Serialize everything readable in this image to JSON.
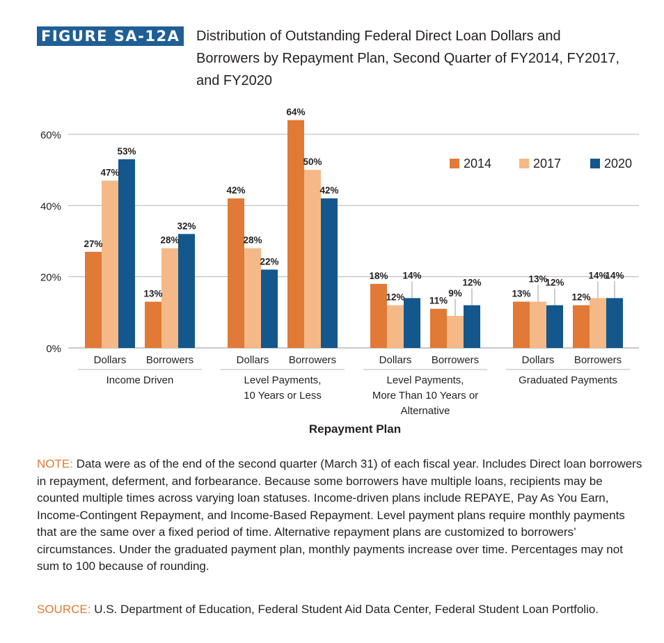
{
  "figure": {
    "label": "FIGURE SA-12A",
    "title": "Distribution of Outstanding Federal Direct Loan Dollars and Borrowers by Repayment Plan, Second Quarter of FY2014, FY2017, and FY2020"
  },
  "colors": {
    "s2014": "#e07a36",
    "s2017": "#f4b987",
    "s2020": "#13578c",
    "grid": "#b5b5b5"
  },
  "chart_data": {
    "type": "bar",
    "xlabel": "Repayment Plan",
    "ylabel": "",
    "ylim": [
      0,
      60
    ],
    "yticks": [
      "0%",
      "20%",
      "40%",
      "60%"
    ],
    "grid": true,
    "legend_position": "top-right",
    "groups": [
      {
        "name": "Income Driven",
        "categories": [
          "Dollars",
          "Borrowers"
        ]
      },
      {
        "name": "Level Payments, 10 Years or Less",
        "categories": [
          "Dollars",
          "Borrowers"
        ]
      },
      {
        "name": "Level Payments, More Than 10 Years or Alternative",
        "categories": [
          "Dollars",
          "Borrowers"
        ]
      },
      {
        "name": "Graduated Payments",
        "categories": [
          "Dollars",
          "Borrowers"
        ]
      }
    ],
    "series": [
      {
        "name": "2014",
        "values": [
          27,
          13,
          42,
          64,
          18,
          11,
          13,
          12
        ],
        "labels": [
          "27%",
          "13%",
          "42%",
          "64%",
          "18%",
          "11%",
          "13%",
          "12%"
        ]
      },
      {
        "name": "2017",
        "values": [
          47,
          28,
          28,
          50,
          12,
          9,
          13,
          14
        ],
        "labels": [
          "47%",
          "28%",
          "28%",
          "50%",
          "12%",
          "9%",
          "13%",
          "14%"
        ]
      },
      {
        "name": "2020",
        "values": [
          53,
          32,
          22,
          42,
          14,
          12,
          12,
          14
        ],
        "labels": [
          "53%",
          "32%",
          "22%",
          "42%",
          "14%",
          "12%",
          "12%",
          "14%"
        ]
      }
    ]
  },
  "note": {
    "label": "NOTE:",
    "text": "Data were as of the end of the second quarter (March 31) of each fiscal year. Includes Direct loan borrowers in repayment, deferment, and forbearance. Because some borrowers have multiple loans, recipients may be counted multiple times across varying loan statuses. Income-driven plans include REPAYE, Pay As You Earn, Income-Contingent Repayment, and Income-Based Repayment. Level payment plans require monthly payments that are the same over a fixed period of time. Alternative repayment plans are customized to borrowers’ circumstances. Under the graduated payment plan, monthly payments increase over time. Percentages may not sum to 100 because of rounding."
  },
  "source": {
    "label": "SOURCE:",
    "text": "U.S. Department of Education, Federal Student Aid Data Center, Federal Student Loan Portfolio."
  }
}
